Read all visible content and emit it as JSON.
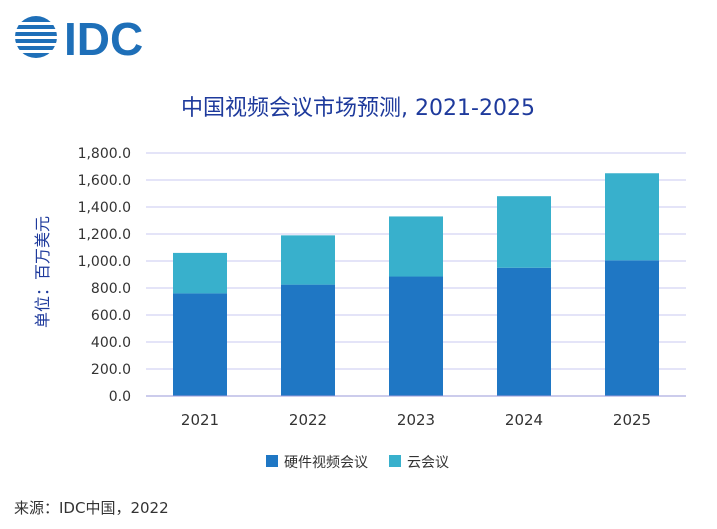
{
  "brand": {
    "name": "IDC",
    "color": "#1e6fb8"
  },
  "chart_data": {
    "type": "bar",
    "stacked": true,
    "title": "中国视频会议市场预测, 2021-2025",
    "ylabel": "单位：百万美元",
    "xlabel": "",
    "categories": [
      "2021",
      "2022",
      "2023",
      "2024",
      "2025"
    ],
    "series": [
      {
        "name": "硬件视频会议",
        "color": "#1f77c4",
        "values": [
          760,
          825,
          885,
          950,
          1005
        ]
      },
      {
        "name": "云会议",
        "color": "#38b0cc",
        "values": [
          300,
          365,
          445,
          530,
          645
        ]
      }
    ],
    "ylim": [
      0,
      1800
    ],
    "yticks": [
      0,
      200,
      400,
      600,
      800,
      1000,
      1200,
      1400,
      1600,
      1800
    ],
    "ytick_labels": [
      "0.0",
      "200.0",
      "400.0",
      "600.0",
      "800.0",
      "1,000.0",
      "1,200.0",
      "1,400.0",
      "1,600.0",
      "1,800.0"
    ],
    "grid": true,
    "legend_position": "bottom",
    "title_color": "#1e3a9c",
    "grid_color": "#c8c8f0",
    "axis_text_color": "#333333"
  },
  "source_text": "来源：IDC中国，2022"
}
